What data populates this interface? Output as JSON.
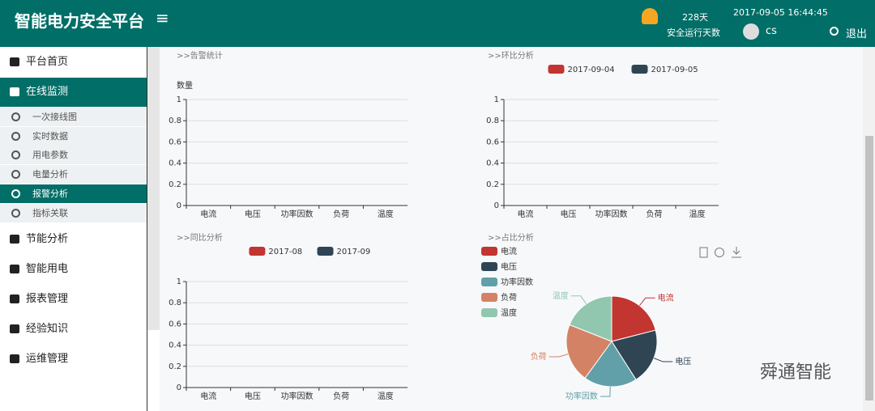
{
  "header": {
    "title": "智能电力安全平台",
    "menu_icon": "≡",
    "run_days": "228天",
    "run_label": "安全运行天数",
    "datetime": "2017-09-05 16:44:45",
    "user": "cs",
    "logout": "退出"
  },
  "sidebar": {
    "items": [
      {
        "label": "平台首页"
      },
      {
        "label": "在线监测",
        "children": [
          "一次接线图",
          "实时数据",
          "用电参数",
          "电量分析",
          "报警分析",
          "指标关联"
        ]
      },
      {
        "label": "节能分析"
      },
      {
        "label": "智能用电"
      },
      {
        "label": "报表管理"
      },
      {
        "label": "经验知识"
      },
      {
        "label": "运维管理"
      }
    ]
  },
  "charts": [
    {
      "type": "bar",
      "title": ">>告警统计",
      "ylabel": "数量",
      "categories": [
        "电流",
        "电压",
        "功率因数",
        "负荷",
        "温度"
      ],
      "ylim": [
        0,
        1
      ],
      "yticks": [
        0,
        0.2,
        0.4,
        0.6,
        0.8,
        1
      ]
    },
    {
      "type": "bar",
      "title": ">>环比分析",
      "categories": [
        "电流",
        "电压",
        "功率因数",
        "负荷",
        "温度"
      ],
      "ylim": [
        0,
        1
      ],
      "yticks": [
        0,
        0.2,
        0.4,
        0.6,
        0.8,
        1
      ],
      "series": [
        {
          "name": "2017-09-04",
          "color": "#c23531"
        },
        {
          "name": "2017-09-05",
          "color": "#2f4554"
        }
      ]
    },
    {
      "type": "bar",
      "title": ">>同比分析",
      "categories": [
        "电流",
        "电压",
        "功率因数",
        "负荷",
        "温度"
      ],
      "ylim": [
        0,
        1
      ],
      "yticks": [
        0,
        0.2,
        0.4,
        0.6,
        0.8,
        1
      ],
      "series": [
        {
          "name": "2017-08",
          "color": "#c23531"
        },
        {
          "name": "2017-09",
          "color": "#2f4554"
        }
      ]
    },
    {
      "type": "pie",
      "title": ">>占比分析",
      "categories": [
        "电流",
        "电压",
        "功率因数",
        "负荷",
        "温度"
      ],
      "values": [
        21,
        20,
        19,
        21,
        19
      ],
      "colors": [
        "#c23531",
        "#2f4554",
        "#61a0a8",
        "#d48265",
        "#91c7ae"
      ]
    }
  ],
  "watermark": "舜通智能"
}
